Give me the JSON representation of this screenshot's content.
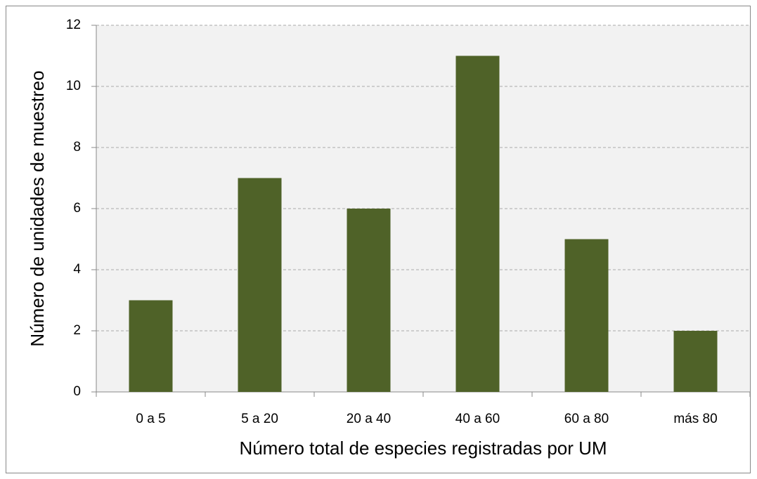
{
  "chart_data": {
    "type": "bar",
    "categories": [
      "0 a 5",
      "5 a 20",
      "20 a 40",
      "40 a 60",
      "60 a 80",
      "más 80"
    ],
    "values": [
      3,
      7,
      6,
      11,
      5,
      2
    ],
    "color": "#4f6228",
    "ylim": [
      0,
      12
    ],
    "yticks": [
      0,
      2,
      4,
      6,
      8,
      10,
      12
    ],
    "grid": true,
    "x_label": "Número total de especies registradas por UM",
    "y_label": "Número de unidades de muestreo"
  }
}
